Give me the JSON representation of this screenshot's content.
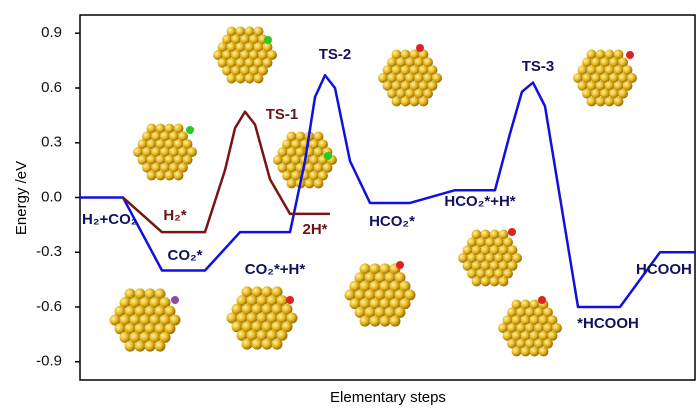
{
  "chart_data": {
    "type": "line",
    "xlabel": "Elementary steps",
    "ylabel": "Energy /eV",
    "xlim": [
      0,
      61.6
    ],
    "ylim": [
      -1,
      1
    ],
    "yticks": [
      {
        "value": 0.9,
        "label": "0.9"
      },
      {
        "value": 0.6,
        "label": "0.6"
      },
      {
        "value": 0.3,
        "label": "0.3"
      },
      {
        "value": 0.0,
        "label": "0.0"
      },
      {
        "value": -0.3,
        "label": "-0.3"
      },
      {
        "value": -0.6,
        "label": "-0.6"
      },
      {
        "value": -0.9,
        "label": "-0.9"
      }
    ],
    "grid": false,
    "series": [
      {
        "color": "#1010e0",
        "x": [
          0,
          4.3,
          8.2,
          12.5,
          16,
          21,
          22.5,
          23.5,
          24.5,
          25.5,
          27,
          29,
          33,
          37.5,
          41.5,
          43,
          44.2,
          45.3,
          46.5,
          48,
          49.8,
          54,
          58,
          61.6
        ],
        "values": [
          0,
          0,
          -0.4,
          -0.4,
          -0.19,
          -0.19,
          0.2,
          0.55,
          0.67,
          0.6,
          0.2,
          -0.03,
          -0.03,
          0.04,
          0.04,
          0.35,
          0.58,
          0.63,
          0.5,
          0.0,
          -0.6,
          -0.6,
          -0.3,
          -0.3
        ]
      },
      {
        "color": "#7a1414",
        "x": [
          4.3,
          8.2,
          12.5,
          14.5,
          15.5,
          16.5,
          17.5,
          19,
          21,
          25
        ],
        "values": [
          0,
          -0.19,
          -0.19,
          0.15,
          0.38,
          0.47,
          0.4,
          0.1,
          -0.09,
          -0.09
        ]
      }
    ],
    "annotations": [
      {
        "text": "H₂+CO₂",
        "color": "#12125e"
      },
      {
        "text": "H₂*",
        "color": "#6a1414"
      },
      {
        "text": "TS-1",
        "color": "#6a1414"
      },
      {
        "text": "2H*",
        "color": "#6a1414"
      },
      {
        "text": "CO₂*",
        "color": "#12125e"
      },
      {
        "text": "CO₂*+H*",
        "color": "#12125e"
      },
      {
        "text": "TS-2",
        "color": "#12125e"
      },
      {
        "text": "HCO₂*",
        "color": "#12125e"
      },
      {
        "text": "HCO₂*+H*",
        "color": "#12125e"
      },
      {
        "text": "TS-3",
        "color": "#12125e"
      },
      {
        "text": "*HCOOH",
        "color": "#12125e"
      },
      {
        "text": "HCOOH",
        "color": "#12125e"
      }
    ]
  }
}
